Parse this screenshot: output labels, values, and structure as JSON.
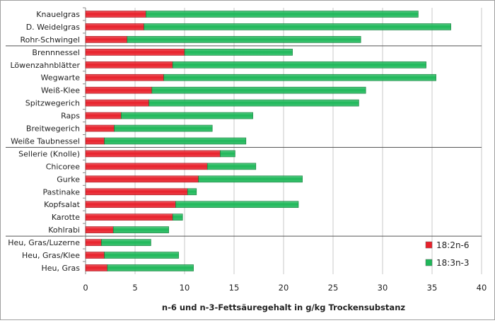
{
  "chart_data": {
    "type": "bar",
    "orientation": "horizontal",
    "stacked": true,
    "categories": [
      "Knauelgras",
      "D. Weidelgras",
      "Rohr-Schwingel",
      "Brennnessel",
      "Löwenzahnblätter",
      "Wegwarte",
      "Weiß-Klee",
      "Spitzwegerich",
      "Raps",
      "Breitwegerich",
      "Weiße Taubnessel",
      "Sellerie (Knolle)",
      "Chicoree",
      "Gurke",
      "Pastinake",
      "Kopfsalat",
      "Karotte",
      "Kohlrabi",
      "Heu, Gras/Luzerne",
      "Heu, Gras/Klee",
      "Heu, Gras"
    ],
    "series": [
      {
        "name": "18:2n-6",
        "color": "#e8212b",
        "values": [
          6.1,
          5.9,
          4.2,
          10.0,
          8.8,
          7.9,
          6.7,
          6.4,
          3.6,
          2.9,
          1.9,
          13.6,
          12.3,
          11.4,
          10.3,
          9.1,
          8.8,
          2.8,
          1.6,
          1.9,
          2.2
        ]
      },
      {
        "name": "18:3n-3",
        "color": "#1fb85a",
        "values": [
          27.5,
          31.0,
          23.6,
          10.9,
          25.6,
          27.5,
          21.6,
          21.2,
          13.3,
          9.9,
          14.3,
          1.5,
          4.9,
          10.5,
          0.9,
          12.4,
          1.0,
          5.6,
          5.0,
          7.5,
          8.7
        ]
      }
    ],
    "group_separators_after": [
      "Rohr-Schwingel",
      "Weiße Taubnessel",
      "Kohlrabi"
    ],
    "xlabel": "n-6 und n-3-Fettsäuregehalt in g/kg Trockensubstanz",
    "ylabel": "",
    "xlim": [
      0,
      40
    ],
    "xticks": [
      "0",
      "5",
      "10",
      "15",
      "20",
      "25",
      "30",
      "35",
      "40"
    ],
    "grid": "vertical",
    "legend": "bottom-right"
  }
}
